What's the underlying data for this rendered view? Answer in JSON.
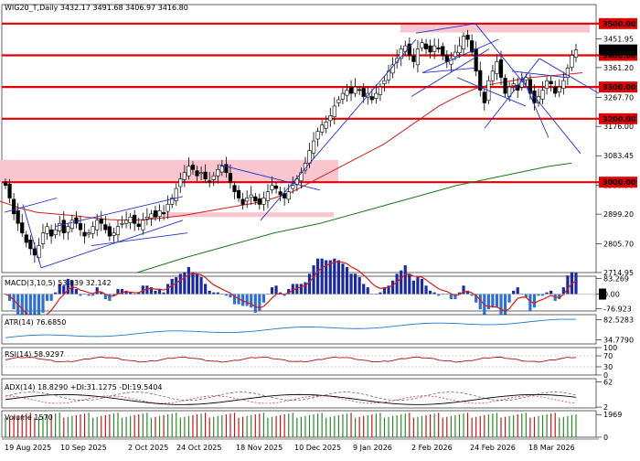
{
  "chart_data": {
    "type": "candlestick",
    "header": "WIG20_T,Daily  3432.17 3491.68 3406.97 3416.80",
    "price_axis": {
      "range": [
        2714.95,
        3560
      ],
      "ticks": [
        {
          "label": "3451.95",
          "value": 3451.95
        },
        {
          "label": "3361.20",
          "value": 3361.2
        },
        {
          "label": "3267.70",
          "value": 3267.7
        },
        {
          "label": "3176.00",
          "value": 3176.0
        },
        {
          "label": "3083.45",
          "value": 3083.45
        },
        {
          "label": "2990.90",
          "value": 2990.9
        },
        {
          "label": "2899.20",
          "value": 2899.2
        },
        {
          "label": "2805.70",
          "value": 2805.7
        },
        {
          "label": "2714.95",
          "value": 2714.95
        }
      ],
      "current_label": "3416.80",
      "current_value": 3416.8
    },
    "levels": [
      {
        "label": "3500.00",
        "value": 3500
      },
      {
        "label": "3400.00",
        "value": 3400
      },
      {
        "label": "3300.00",
        "value": 3300
      },
      {
        "label": "3200.00",
        "value": 3200
      },
      {
        "label": "3000.00",
        "value": 3000
      }
    ],
    "zones": [
      {
        "x": [
          0,
          370
        ],
        "y": [
          3000,
          3070
        ]
      },
      {
        "x": [
          180,
          365
        ],
        "y": [
          2890,
          2905
        ]
      },
      {
        "x": [
          438,
          645
        ],
        "y": [
          3472,
          3500
        ]
      }
    ],
    "x_labels": [
      "19 Aug 2025",
      "10 Sep 2025",
      "2 Oct 2025",
      "24 Oct 2025",
      "18 Nov 2025",
      "10 Dec 2025",
      "9 Jan 2026",
      "2 Feb 2026",
      "24 Feb 2026",
      "18 Mar 2026"
    ],
    "closes": [
      2990,
      2950,
      2900,
      2870,
      2840,
      2810,
      2790,
      2770,
      2800,
      2840,
      2860,
      2830,
      2850,
      2870,
      2840,
      2860,
      2880,
      2870,
      2850,
      2830,
      2840,
      2860,
      2880,
      2870,
      2850,
      2830,
      2840,
      2860,
      2870,
      2880,
      2890,
      2870,
      2860,
      2880,
      2890,
      2900,
      2890,
      2910,
      2900,
      2930,
      2950,
      2980,
      3010,
      3030,
      3050,
      3040,
      3020,
      3030,
      3010,
      3000,
      3020,
      3040,
      3050,
      3030,
      3000,
      2970,
      2950,
      2930,
      2950,
      2960,
      2940,
      2930,
      2950,
      2970,
      2990,
      2980,
      2960,
      2950,
      2970,
      2990,
      3010,
      3030,
      3060,
      3100,
      3130,
      3160,
      3180,
      3190,
      3210,
      3240,
      3260,
      3280,
      3290,
      3280,
      3300,
      3290,
      3270,
      3280,
      3260,
      3280,
      3300,
      3320,
      3350,
      3370,
      3390,
      3420,
      3430,
      3400,
      3380,
      3420,
      3440,
      3420,
      3410,
      3430,
      3420,
      3400,
      3380,
      3390,
      3410,
      3430,
      3460,
      3450,
      3410,
      3350,
      3290,
      3250,
      3320,
      3350,
      3380,
      3330,
      3280,
      3300,
      3310,
      3290,
      3320,
      3330,
      3280,
      3250,
      3270,
      3290,
      3320,
      3310,
      3280,
      3300,
      3320,
      3360,
      3400,
      3416.8
    ],
    "ma_red": {
      "name": "MA red",
      "points": [
        [
          0,
          2940
        ],
        [
          20,
          2920
        ],
        [
          40,
          2905
        ],
        [
          60,
          2900
        ],
        [
          80,
          2895
        ],
        [
          100,
          2888
        ],
        [
          120,
          2882
        ],
        [
          140,
          2880
        ],
        [
          160,
          2882
        ],
        [
          180,
          2888
        ],
        [
          200,
          2895
        ],
        [
          220,
          2905
        ],
        [
          240,
          2915
        ],
        [
          260,
          2925
        ],
        [
          280,
          2935
        ],
        [
          300,
          2950
        ],
        [
          320,
          2970
        ],
        [
          340,
          3000
        ],
        [
          360,
          3030
        ],
        [
          380,
          3060
        ],
        [
          400,
          3090
        ],
        [
          420,
          3120
        ],
        [
          440,
          3160
        ],
        [
          460,
          3200
        ],
        [
          480,
          3240
        ],
        [
          500,
          3270
        ],
        [
          520,
          3295
        ],
        [
          540,
          3310
        ],
        [
          560,
          3320
        ],
        [
          580,
          3330
        ],
        [
          600,
          3335
        ],
        [
          620,
          3340
        ],
        [
          637,
          3345
        ]
      ]
    },
    "ma_green": {
      "name": "MA green",
      "points": [
        [
          150,
          2714.95
        ],
        [
          200,
          2760
        ],
        [
          250,
          2800
        ],
        [
          300,
          2840
        ],
        [
          350,
          2870
        ],
        [
          400,
          2910
        ],
        [
          450,
          2950
        ],
        [
          500,
          2990
        ],
        [
          550,
          3020
        ],
        [
          600,
          3050
        ],
        [
          625,
          3060
        ]
      ]
    },
    "trendlines": [
      {
        "p1": [
          5,
          2905
        ],
        "p2": [
          62,
          2950
        ]
      },
      {
        "p1": [
          25,
          2930
        ],
        "p2": [
          45,
          2730
        ]
      },
      {
        "p1": [
          45,
          2730
        ],
        "p2": [
          200,
          2880
        ]
      },
      {
        "p1": [
          60,
          2860
        ],
        "p2": [
          200,
          2955
        ]
      },
      {
        "p1": [
          100,
          2800
        ],
        "p2": [
          205,
          2840
        ]
      },
      {
        "p1": [
          240,
          3055
        ],
        "p2": [
          350,
          2975
        ]
      },
      {
        "p1": [
          285,
          2880
        ],
        "p2": [
          455,
          3450
        ]
      },
      {
        "p1": [
          455,
          3470
        ],
        "p2": [
          520,
          3500
        ]
      },
      {
        "p1": [
          450,
          3270
        ],
        "p2": [
          535,
          3420
        ]
      },
      {
        "p1": [
          462,
          3345
        ],
        "p2": [
          520,
          3360
        ]
      },
      {
        "p1": [
          462,
          3345
        ],
        "p2": [
          545,
          3450
        ]
      },
      {
        "p1": [
          520,
          3500
        ],
        "p2": [
          635,
          3090
        ]
      },
      {
        "p1": [
          500,
          3330
        ],
        "p2": [
          575,
          3240
        ]
      },
      {
        "p1": [
          530,
          3170
        ],
        "p2": [
          590,
          3390
        ]
      },
      {
        "p1": [
          590,
          3390
        ],
        "p2": [
          655,
          3280
        ]
      },
      {
        "p1": [
          560,
          3350
        ],
        "p2": [
          620,
          3330
        ]
      },
      {
        "p1": [
          570,
          3340
        ],
        "p2": [
          600,
          3140
        ]
      }
    ],
    "macd": {
      "label": "MACD(3,10,5) 53.839 32.142",
      "ticks": [
        {
          "label": "83.269",
          "value": 83.269
        },
        {
          "label": "0.00",
          "value": 0
        },
        {
          "label": "-76.923",
          "value": -76.923
        }
      ],
      "range": [
        -90,
        95
      ]
    },
    "atr": {
      "label": "ATR(14) 76.6850",
      "ticks": [
        {
          "label": "82.5283",
          "value": 82.5283
        },
        {
          "label": "34.7790",
          "value": 34.779
        }
      ],
      "range": [
        25,
        95
      ]
    },
    "rsi": {
      "label": "RSI(14) 58.9297",
      "ticks": [
        {
          "label": "100",
          "value": 100
        },
        {
          "label": "70",
          "value": 70
        },
        {
          "label": "30",
          "value": 30
        },
        {
          "label": "0",
          "value": 0
        }
      ],
      "range": [
        0,
        100
      ]
    },
    "adx": {
      "label": "ADX(14) 18.8290 +DI:31.1275 -DI:19.5404",
      "ticks": [
        {
          "label": "62",
          "value": 62
        },
        {
          "label": "2",
          "value": 2
        }
      ],
      "range": [
        0,
        70
      ]
    },
    "volume": {
      "label": "Volume 1570",
      "ticks": [
        {
          "label": "1969",
          "value": 1969
        },
        {
          "label": "0",
          "value": 0
        }
      ],
      "range": [
        0,
        2300
      ]
    },
    "colors": {
      "up": "#2a8a2a",
      "down": "#000000",
      "level": "#e00000",
      "zone": "#f9c6d0",
      "trend": "#2233cc",
      "ma_red": "#d41c1c",
      "ma_green": "#1a7a1a",
      "atr": "#2277cc",
      "rsi": "#aa1111"
    }
  }
}
